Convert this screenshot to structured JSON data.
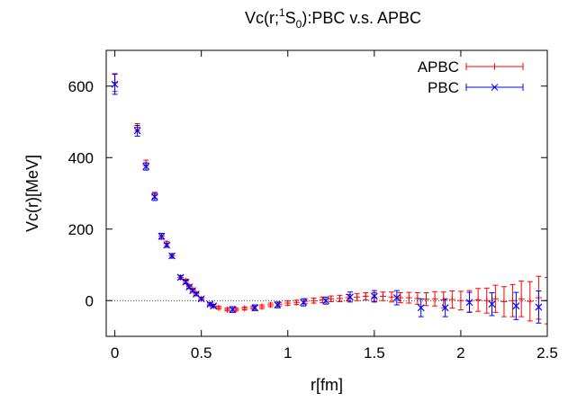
{
  "chart_data": {
    "type": "scatter",
    "title": {
      "pre": "Vc(r;",
      "sup": "1",
      "mid": "S",
      "sub": "0",
      "post": "):PBC v.s. APBC"
    },
    "xlabel": "r[fm]",
    "ylabel": "Vc(r)[MeV]",
    "xlim": [
      -0.05,
      2.5
    ],
    "ylim": [
      -100,
      700
    ],
    "xticks": [
      0,
      0.5,
      1,
      1.5,
      2,
      2.5
    ],
    "xtick_labels": [
      "0",
      "0.5",
      "1",
      "1.5",
      "2",
      "2.5"
    ],
    "yticks": [
      0,
      200,
      400,
      600
    ],
    "ytick_labels": [
      "0",
      "200",
      "400",
      "600"
    ],
    "zero_line": true,
    "legend_position": "top-right",
    "series": [
      {
        "name": "APBC",
        "color": "#ff0000",
        "marker": "plus",
        "x": [
          0.0,
          0.13,
          0.18,
          0.23,
          0.27,
          0.3,
          0.33,
          0.38,
          0.41,
          0.43,
          0.45,
          0.47,
          0.5,
          0.55,
          0.57,
          0.6,
          0.65,
          0.7,
          0.75,
          0.8,
          0.85,
          0.9,
          0.95,
          1.0,
          1.05,
          1.1,
          1.15,
          1.2,
          1.25,
          1.3,
          1.35,
          1.4,
          1.45,
          1.5,
          1.55,
          1.6,
          1.65,
          1.7,
          1.75,
          1.8,
          1.85,
          1.9,
          1.95,
          2.0,
          2.05,
          2.1,
          2.15,
          2.2,
          2.25,
          2.3,
          2.35,
          2.4,
          2.45,
          2.5
        ],
        "y": [
          610,
          485,
          385,
          295,
          180,
          160,
          125,
          65,
          55,
          40,
          30,
          20,
          5,
          -10,
          -15,
          -20,
          -25,
          -25,
          -22,
          -20,
          -17,
          -12,
          -10,
          -7,
          -5,
          -2,
          0,
          2,
          5,
          6,
          8,
          10,
          12,
          10,
          12,
          10,
          8,
          8,
          6,
          4,
          5,
          2,
          3,
          0,
          -2,
          2,
          0,
          5,
          -3,
          0,
          5,
          -2,
          8,
          0
        ],
        "err": [
          25,
          10,
          8,
          8,
          8,
          6,
          6,
          5,
          5,
          4,
          4,
          4,
          4,
          4,
          4,
          4,
          4,
          4,
          4,
          4,
          5,
          5,
          5,
          6,
          6,
          7,
          7,
          8,
          8,
          9,
          9,
          10,
          10,
          12,
          12,
          14,
          14,
          15,
          16,
          18,
          20,
          22,
          24,
          26,
          30,
          32,
          35,
          38,
          42,
          45,
          50,
          55,
          60,
          65
        ]
      },
      {
        "name": "PBC",
        "color": "#0000ff",
        "marker": "cross",
        "x": [
          0.0,
          0.13,
          0.18,
          0.23,
          0.27,
          0.3,
          0.33,
          0.38,
          0.41,
          0.43,
          0.45,
          0.47,
          0.5,
          0.55,
          0.57,
          0.68,
          0.81,
          0.94,
          1.09,
          1.22,
          1.36,
          1.5,
          1.63,
          1.77,
          1.91,
          2.05,
          2.18,
          2.32,
          2.45
        ],
        "y": [
          605,
          475,
          375,
          290,
          180,
          155,
          125,
          65,
          52,
          38,
          28,
          18,
          5,
          -10,
          -15,
          -25,
          -20,
          -12,
          -5,
          0,
          10,
          12,
          8,
          -20,
          -20,
          -5,
          -10,
          -15,
          -18
        ],
        "err": [
          28,
          15,
          10,
          10,
          8,
          6,
          6,
          5,
          5,
          4,
          4,
          4,
          4,
          4,
          4,
          8,
          8,
          8,
          10,
          10,
          14,
          16,
          20,
          25,
          25,
          28,
          32,
          38,
          45
        ]
      }
    ]
  }
}
